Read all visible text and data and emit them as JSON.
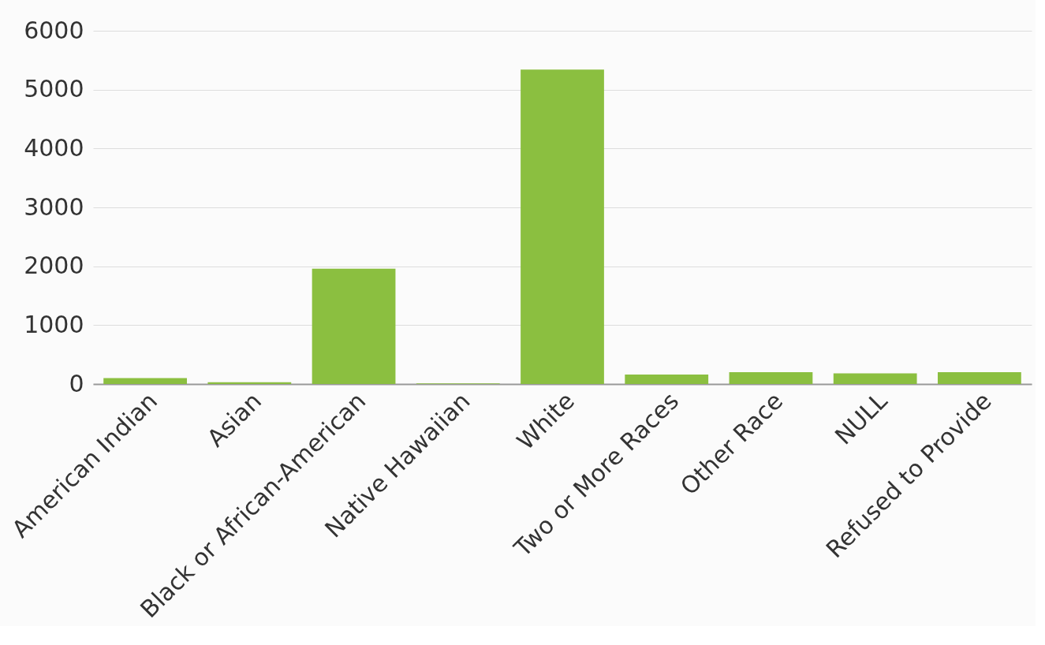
{
  "chart_data": {
    "type": "bar",
    "categories": [
      "American Indian",
      "Asian",
      "Black or African-American",
      "Native Hawaiian",
      "White",
      "Two or More Races",
      "Other Race",
      "NULL",
      "Refused to Provide"
    ],
    "values": [
      100,
      30,
      1960,
      10,
      5340,
      160,
      200,
      180,
      200
    ],
    "color": "#8bbf40",
    "ylim": [
      0,
      6000
    ],
    "yticks": [
      0,
      1000,
      2000,
      3000,
      4000,
      5000,
      6000
    ],
    "grid": "y"
  }
}
